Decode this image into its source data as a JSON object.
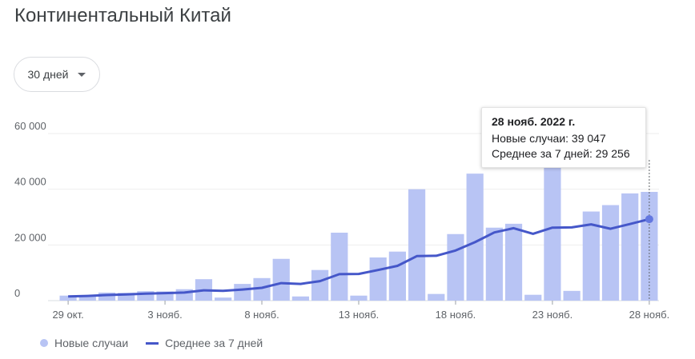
{
  "title": "Континентальный Китай",
  "range_selector": {
    "label": "30 дней",
    "icon": "dropdown-arrow-icon"
  },
  "tooltip": {
    "date": "28 нояб. 2022 г.",
    "new_cases": "Новые случаи: 39 047",
    "avg": "Среднее за 7 дней: 29 256"
  },
  "legend": {
    "bars": "Новые случаи",
    "line": "Среднее за 7 дней"
  },
  "colors": {
    "bar": "#b8c4f4",
    "line": "#4557c9",
    "grid": "#eeeeee",
    "axis_text": "#5f6368"
  },
  "chart_data": {
    "type": "bar",
    "x": [
      "29 окт.",
      "30 окт.",
      "31 окт.",
      "1 нояб.",
      "2 нояб.",
      "3 нояб.",
      "4 нояб.",
      "5 нояб.",
      "6 нояб.",
      "7 нояб.",
      "8 нояб.",
      "9 нояб.",
      "10 нояб.",
      "11 нояб.",
      "12 нояб.",
      "13 нояб.",
      "14 нояб.",
      "15 нояб.",
      "16 нояб.",
      "17 нояб.",
      "18 нояб.",
      "19 нояб.",
      "20 нояб.",
      "21 нояб.",
      "22 нояб.",
      "23 нояб.",
      "24 нояб.",
      "25 нояб.",
      "26 нояб.",
      "27 нояб.",
      "28 нояб."
    ],
    "xticks": [
      "29 окт.",
      "3 нояб.",
      "8 нояб.",
      "13 нояб.",
      "18 нояб.",
      "23 нояб.",
      "28 нояб."
    ],
    "yticks": [
      "0",
      "20 000",
      "40 000",
      "60 000"
    ],
    "ylim": [
      0,
      60000
    ],
    "grid": true,
    "series": [
      {
        "name": "Новые случаи",
        "type": "bar",
        "values": [
          1800,
          2000,
          2900,
          2800,
          3400,
          3300,
          4100,
          7700,
          1100,
          6000,
          8100,
          15000,
          1500,
          11000,
          24400,
          1800,
          15500,
          17600,
          40000,
          2400,
          23900,
          45600,
          26200,
          27600,
          2100,
          48000,
          3500,
          32000,
          34300,
          38500,
          39047
        ]
      },
      {
        "name": "Среднее за 7 дней",
        "type": "line",
        "values": [
          1500,
          1700,
          2000,
          2200,
          2500,
          2700,
          2900,
          3700,
          3500,
          4000,
          4600,
          6300,
          6000,
          7000,
          9500,
          9600,
          11000,
          12500,
          16000,
          16100,
          18000,
          21000,
          24500,
          26000,
          24000,
          26200,
          26300,
          27400,
          25800,
          27500,
          29256
        ]
      }
    ]
  }
}
